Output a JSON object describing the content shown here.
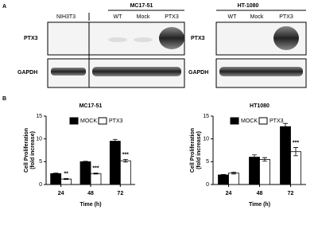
{
  "panel_labels": [
    "A",
    "B"
  ],
  "blots": [
    {
      "header": "MC17-51",
      "lanes": [
        "NIH3T3",
        "WT",
        "Mock",
        "PTX3"
      ],
      "rows": [
        "PTX3",
        "GAPDH"
      ]
    },
    {
      "header": "HT-1080",
      "lanes": [
        "WT",
        "Mock",
        "PTX3"
      ],
      "rows": [
        "PTX3",
        "GAPDH"
      ]
    }
  ],
  "chart_data": [
    {
      "type": "bar",
      "title": "MC17-51",
      "xlabel": "Time (h)",
      "ylabel": [
        "Cell Proliferation",
        "(fold increase)"
      ],
      "categories": [
        "24",
        "48",
        "72"
      ],
      "series": [
        {
          "name": "MOCK",
          "color": "#000000",
          "values": [
            2.4,
            5.0,
            9.5
          ],
          "errors": [
            0.1,
            0.1,
            0.4
          ]
        },
        {
          "name": "PTX3",
          "color": "#ffffff",
          "values": [
            1.2,
            2.4,
            5.2
          ],
          "errors": [
            0.1,
            0.1,
            0.3
          ]
        }
      ],
      "annotations": [
        {
          "category": "24",
          "text": "**"
        },
        {
          "category": "48",
          "text": "***"
        },
        {
          "category": "72",
          "text": "***"
        }
      ],
      "ylim": [
        0,
        15
      ],
      "yticks": [
        0,
        5,
        10,
        15
      ]
    },
    {
      "type": "bar",
      "title": "HT1080",
      "xlabel": "Time (h)",
      "ylabel": [
        "Cell Proliferation",
        "(fold increase)"
      ],
      "categories": [
        "24",
        "48",
        "72"
      ],
      "series": [
        {
          "name": "MOCK",
          "color": "#000000",
          "values": [
            2.1,
            6.0,
            12.7
          ],
          "errors": [
            0.1,
            0.5,
            0.7
          ]
        },
        {
          "name": "PTX3",
          "color": "#ffffff",
          "values": [
            2.5,
            5.5,
            7.2
          ],
          "errors": [
            0.2,
            0.4,
            0.9
          ]
        }
      ],
      "annotations": [
        {
          "category": "72",
          "text": "***"
        }
      ],
      "ylim": [
        0,
        15
      ],
      "yticks": [
        0,
        5,
        10,
        15
      ]
    }
  ]
}
